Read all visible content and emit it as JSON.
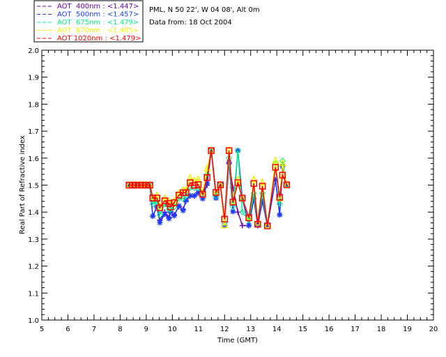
{
  "chart_data": {
    "type": "line",
    "title_lines": [
      "PML, N 50 22', W 04 08', Alt 0m",
      "Data from: 18 Oct 2004"
    ],
    "xlabel": "Time (GMT)",
    "ylabel": "Real Part of Refractive index",
    "xlim": [
      5,
      20
    ],
    "ylim": [
      1.0,
      2.0
    ],
    "xticks": [
      "5",
      "6",
      "7",
      "8",
      "9",
      "10",
      "11",
      "12",
      "13",
      "14",
      "15",
      "16",
      "17",
      "18",
      "19",
      "20"
    ],
    "yticks": [
      "1.0",
      "1.1",
      "1.2",
      "1.3",
      "1.4",
      "1.5",
      "1.6",
      "1.7",
      "1.8",
      "1.9",
      "2.0"
    ],
    "legend_placement": "top-left outside",
    "x": [
      8.34,
      8.47,
      8.6,
      8.74,
      8.87,
      9.0,
      9.14,
      9.25,
      9.41,
      9.52,
      9.71,
      9.87,
      9.93,
      10.07,
      10.25,
      10.41,
      10.52,
      10.68,
      10.84,
      10.99,
      11.16,
      11.33,
      11.49,
      11.67,
      11.84,
      12.0,
      12.17,
      12.32,
      12.51,
      12.68,
      12.93,
      13.12,
      13.27,
      13.45,
      13.64,
      13.95,
      14.11,
      14.22,
      14.38
    ],
    "series": [
      {
        "name": "AOT  400nm : <1.447>",
        "color": "#6a00b0",
        "marker": "plus",
        "values": [
          1.5,
          1.5,
          1.5,
          1.5,
          1.5,
          1.5,
          1.5,
          1.385,
          1.42,
          1.37,
          1.4,
          1.38,
          1.4,
          1.39,
          1.42,
          1.41,
          1.44,
          1.46,
          1.46,
          1.47,
          1.47,
          1.5,
          1.628,
          1.46,
          1.5,
          1.35,
          1.58,
          1.49,
          1.4,
          1.35,
          1.35,
          1.45,
          1.35,
          1.44,
          1.35,
          1.52,
          1.39,
          1.57,
          1.5
        ]
      },
      {
        "name": "AOT  500nm : <1.457>",
        "color": "#1a3cff",
        "marker": "star",
        "values": [
          1.5,
          1.5,
          1.5,
          1.5,
          1.5,
          1.5,
          1.5,
          1.385,
          1.42,
          1.361,
          1.392,
          1.376,
          1.402,
          1.387,
          1.423,
          1.406,
          1.444,
          1.461,
          1.461,
          1.473,
          1.45,
          1.506,
          1.628,
          1.452,
          1.501,
          1.351,
          1.585,
          1.402,
          1.628,
          1.45,
          1.351,
          1.45,
          1.355,
          1.44,
          1.349,
          1.52,
          1.39,
          1.57,
          1.5
        ]
      },
      {
        "name": "AOT  675nm : <1.479>",
        "color": "#00f080",
        "marker": "diamond",
        "values": [
          1.5,
          1.5,
          1.5,
          1.5,
          1.5,
          1.5,
          1.5,
          1.43,
          1.44,
          1.39,
          1.43,
          1.41,
          1.41,
          1.42,
          1.45,
          1.45,
          1.46,
          1.49,
          1.49,
          1.49,
          1.47,
          1.54,
          1.628,
          1.46,
          1.5,
          1.36,
          1.6,
          1.42,
          1.628,
          1.4,
          1.37,
          1.47,
          1.36,
          1.47,
          1.35,
          1.58,
          1.43,
          1.59,
          1.5
        ]
      },
      {
        "name": "AOT  870nm : <1.485>",
        "color": "#f0f000",
        "marker": "triangle",
        "values": [
          1.5,
          1.5,
          1.5,
          1.5,
          1.5,
          1.5,
          1.5,
          1.455,
          1.46,
          1.42,
          1.45,
          1.44,
          1.43,
          1.44,
          1.47,
          1.48,
          1.48,
          1.525,
          1.515,
          1.52,
          1.47,
          1.56,
          1.628,
          1.47,
          1.5,
          1.35,
          1.628,
          1.44,
          1.52,
          1.45,
          1.38,
          1.52,
          1.36,
          1.51,
          1.35,
          1.59,
          1.45,
          1.58,
          1.5
        ]
      },
      {
        "name": "AOT 1020nm : <1.479>",
        "color": "#ff0000",
        "marker": "square",
        "values": [
          1.5,
          1.5,
          1.5,
          1.5,
          1.5,
          1.5,
          1.5,
          1.452,
          1.452,
          1.416,
          1.442,
          1.432,
          1.419,
          1.435,
          1.463,
          1.472,
          1.472,
          1.509,
          1.499,
          1.502,
          1.466,
          1.528,
          1.628,
          1.473,
          1.501,
          1.374,
          1.628,
          1.437,
          1.509,
          1.452,
          1.379,
          1.506,
          1.355,
          1.496,
          1.349,
          1.566,
          1.455,
          1.537,
          1.501
        ]
      }
    ]
  }
}
